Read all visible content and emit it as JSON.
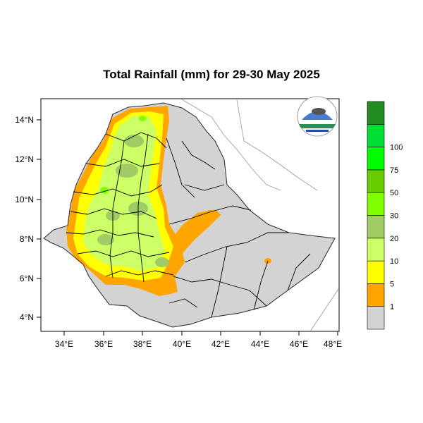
{
  "title": "Total Rainfall (mm) for 29-30 May 2025",
  "axes": {
    "y_ticks": [
      "14°N",
      "12°N",
      "10°N",
      "8°N",
      "6°N",
      "4°N"
    ],
    "x_ticks": [
      "34°E",
      "36°E",
      "38°E",
      "40°E",
      "42°E",
      "44°E",
      "46°E",
      "48°E"
    ]
  },
  "legend": {
    "labels": [
      "1",
      "5",
      "10",
      "20",
      "30",
      "50",
      "75",
      "100"
    ],
    "colors": [
      "#d3d3d3",
      "#ffa500",
      "#ffff00",
      "#ccff66",
      "#a0cc66",
      "#80ff00",
      "#66cc00",
      "#00ff00",
      "#00dd33",
      "#228b22"
    ]
  },
  "logo": {
    "text": "Ethiopian Meteorological Institute"
  },
  "chart_data": {
    "type": "map",
    "title": "Total Rainfall (mm) for 29-30 May 2025",
    "lon_range": [
      33,
      48
    ],
    "lat_range": [
      3.2,
      15
    ],
    "legend_thresholds_mm": [
      1,
      5,
      10,
      20,
      30,
      50,
      75,
      100
    ]
  }
}
